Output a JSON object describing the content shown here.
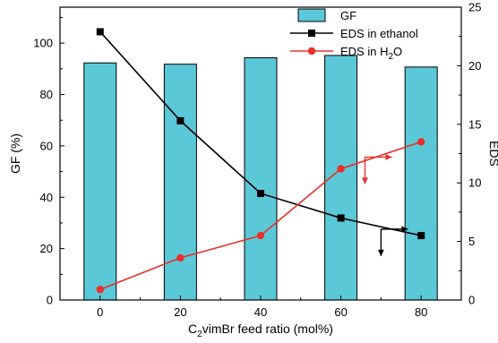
{
  "chart_data": {
    "type": "bar",
    "xlabel": "C2vimBr feed ratio (mol%)",
    "xlabel_parts": {
      "pre": "C",
      "sub": "2",
      "post": "vimBr feed ratio (mol%)"
    },
    "ylabel_left": "GF (%)",
    "ylabel_right": "EDS",
    "x": [
      0,
      20,
      40,
      60,
      80
    ],
    "xlim": [
      -10,
      90
    ],
    "ylim_left": [
      0,
      114
    ],
    "ylim_right": [
      0,
      25
    ],
    "xticks": [
      0,
      20,
      40,
      60,
      80
    ],
    "yticks_left": [
      0,
      20,
      40,
      60,
      80,
      100
    ],
    "yticks_right": [
      0,
      5,
      10,
      15,
      20,
      25
    ],
    "series": [
      {
        "name": "GF",
        "kind": "bar",
        "axis": "left",
        "color": "#5bc8d8",
        "values": [
          92.3,
          91.8,
          94.3,
          95.2,
          90.7
        ]
      },
      {
        "name": "EDS in ethanol",
        "kind": "line",
        "marker": "square",
        "axis": "right",
        "color": "#000000",
        "values": [
          22.9,
          15.3,
          9.1,
          7.0,
          5.5
        ]
      },
      {
        "name": "EDS in H2O",
        "legend_parts": {
          "pre": "EDS in H",
          "sub": "2",
          "post": "O"
        },
        "kind": "line",
        "marker": "circle",
        "axis": "right",
        "color": "#e8302a",
        "values": [
          0.9,
          3.6,
          5.5,
          11.2,
          13.5
        ]
      }
    ],
    "legend_position": "top-right"
  }
}
